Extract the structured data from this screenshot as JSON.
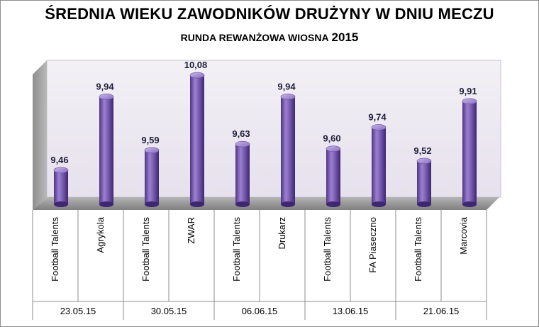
{
  "chart_data": {
    "type": "bar",
    "title": "ŚREDNIA WIEKU ZAWODNIKÓW DRUŻYNY W DNIU MECZU",
    "subtitle": "RUNDA REWANŻOWA WIOSNA",
    "subtitle_year": "2015",
    "categories": [
      "Football Talents",
      "Agrykola",
      "Football Talents",
      "ZWAR",
      "Football Talents",
      "Drukarz",
      "Football Talents",
      "FA Piaseczno",
      "Football Talents",
      "Marcovia"
    ],
    "values": [
      9.46,
      9.94,
      9.59,
      10.08,
      9.63,
      9.94,
      9.6,
      9.74,
      9.52,
      9.91
    ],
    "data_labels": [
      "9,46",
      "9,94",
      "9,59",
      "10,08",
      "9,63",
      "9,94",
      "9,60",
      "9,74",
      "9,52",
      "9,91"
    ],
    "groups": [
      "23.05.15",
      "30.05.15",
      "06.06.15",
      "13.06.15",
      "21.06.15"
    ],
    "ylim": [
      9.2,
      10.15
    ],
    "grid": false,
    "legend": "none",
    "bar_style": "3d-cylinder",
    "colors": {
      "bar": "#7e5fb4",
      "bar_dark": "#4a2f7e",
      "bar_light": "#b9a4df",
      "wall": "#ece8f1",
      "side_wall": "#a6a6a6",
      "floor": "#9b9b9b",
      "label": "#1f1f3a"
    }
  }
}
